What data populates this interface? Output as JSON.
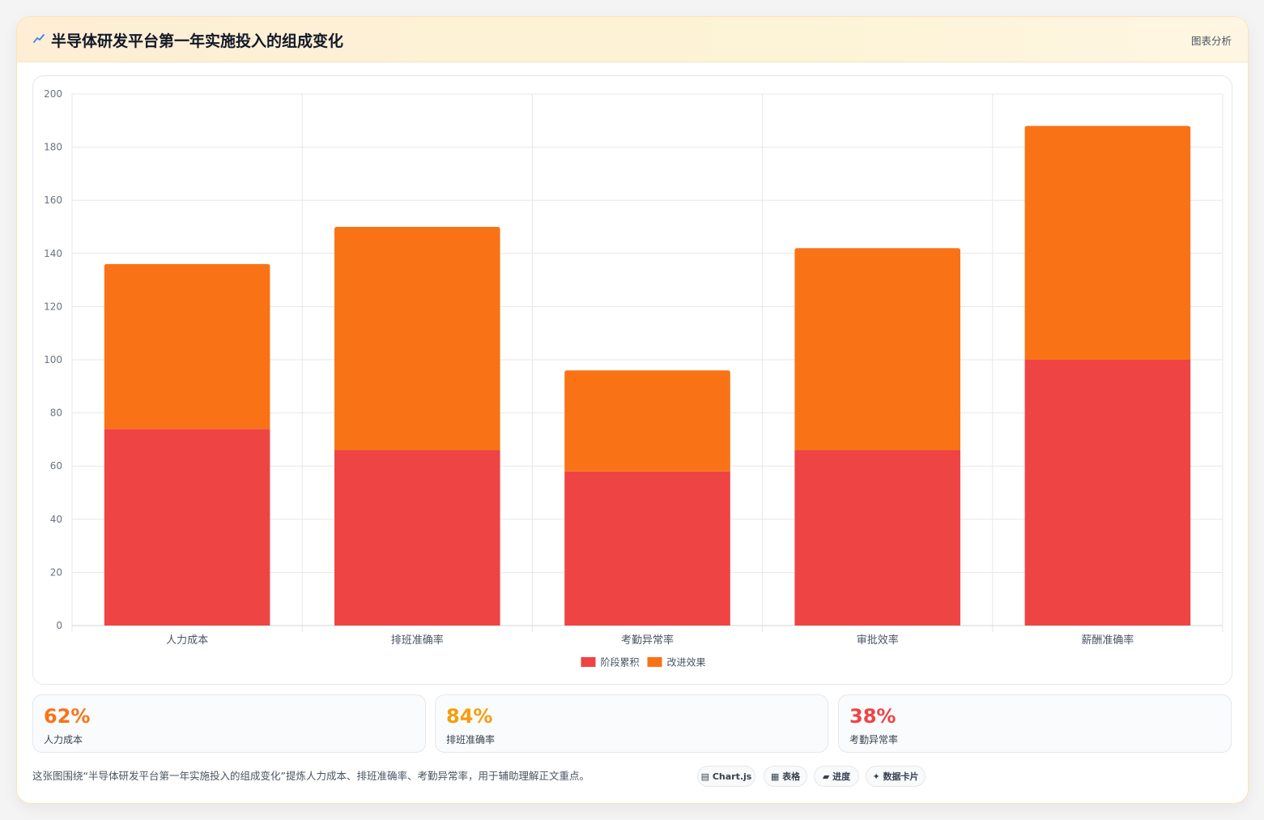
{
  "header": {
    "title": "半导体研发平台第一年实施投入的组成变化",
    "tag": "图表分析"
  },
  "chart_data": {
    "type": "bar",
    "stacked": true,
    "categories": [
      "人力成本",
      "排班准确率",
      "考勤异常率",
      "审批效率",
      "薪酬准确率"
    ],
    "series": [
      {
        "name": "阶段累积",
        "values": [
          74,
          66,
          58,
          66,
          100
        ],
        "color": "#ef4444"
      },
      {
        "name": "改进效果",
        "values": [
          62,
          84,
          38,
          76,
          88
        ],
        "color": "#f97316"
      }
    ],
    "ylim": [
      0,
      200
    ],
    "yticks": [
      0,
      20,
      40,
      60,
      80,
      100,
      120,
      140,
      160,
      180,
      200
    ],
    "grid": true,
    "legend_position": "bottom"
  },
  "stats": [
    {
      "value": "62%",
      "label": "人力成本",
      "color": "#f97316"
    },
    {
      "value": "84%",
      "label": "排班准确率",
      "color": "#f59e0b"
    },
    {
      "value": "38%",
      "label": "考勤异常率",
      "color": "#ef4444"
    }
  ],
  "footer": {
    "text": "这张图围绕“半导体研发平台第一年实施投入的组成变化”提炼人力成本、排班准确率、考勤异常率，用于辅助理解正文重点。",
    "chips": [
      "▤ Chart.js",
      "▦ 表格",
      "▰ 进度",
      "✦ 数据卡片"
    ]
  }
}
